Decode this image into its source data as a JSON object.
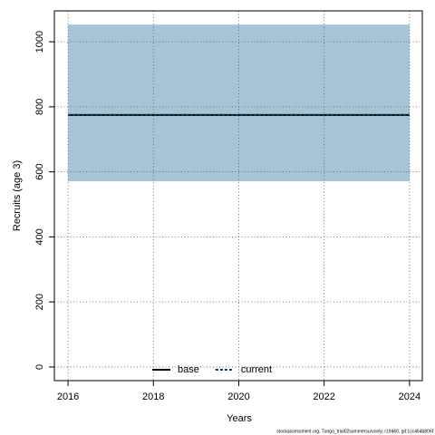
{
  "chart_data": {
    "type": "line",
    "xlabel": "Years",
    "ylabel": "Recruits (age 3)",
    "x": [
      2016,
      2024
    ],
    "xlim": [
      2015.68,
      2024.3
    ],
    "xticks": [
      2016,
      2018,
      2020,
      2022,
      2024
    ],
    "ylim": [
      -42,
      1095
    ],
    "yticks": [
      0,
      200,
      400,
      600,
      800,
      1000
    ],
    "grid": true,
    "band": {
      "lower": [
        571,
        571
      ],
      "upper": [
        1053,
        1053
      ],
      "color": "#a5c4d6"
    },
    "series": [
      {
        "name": "base",
        "color": "#000000",
        "dash": false,
        "values": [
          775,
          775
        ]
      },
      {
        "name": "current",
        "color": "#0b3a5a",
        "dash": true,
        "values": [
          775,
          775
        ]
      }
    ],
    "legend": "bottom",
    "footer": "stockassessment.org, Tunga_trial02summersurvonly, r19460, git:1cc464b806f"
  }
}
